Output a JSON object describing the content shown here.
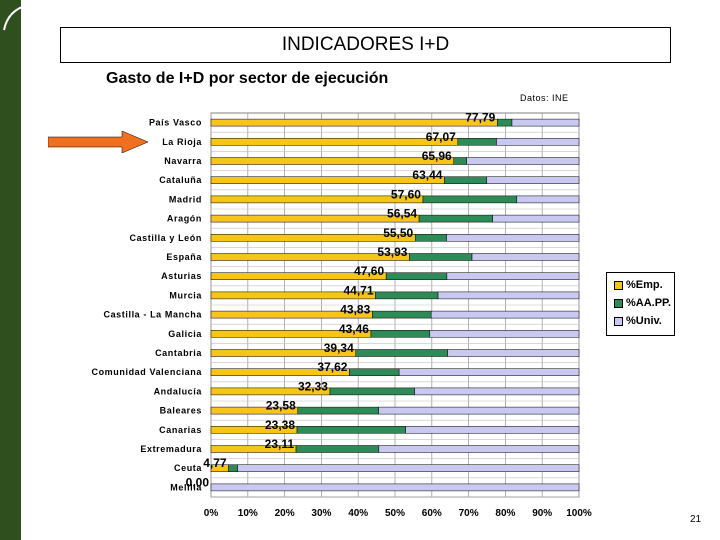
{
  "header": {
    "title": "INDICADORES I+D",
    "subtitle": "Gasto de I+D por sector de ejecución",
    "source": "Datos: INE",
    "page_number": "21"
  },
  "colors": {
    "emp": "#f5c518",
    "aapp": "#2e8b57",
    "univ": "#c8c8f0",
    "arrow": "#f07020",
    "left_bar": "#2f4f1f"
  },
  "legend": [
    {
      "label": "%Emp.",
      "color": "#f5c518"
    },
    {
      "label": "%AA.PP.",
      "color": "#2e8b57"
    },
    {
      "label": "%Univ.",
      "color": "#c8c8f0"
    }
  ],
  "chart_data": {
    "type": "bar",
    "orientation": "horizontal",
    "stacked": true,
    "title": "",
    "xlabel": "",
    "ylabel": "",
    "xlim": [
      0,
      100
    ],
    "x_ticks": [
      "0%",
      "10%",
      "20%",
      "30%",
      "40%",
      "50%",
      "60%",
      "70%",
      "80%",
      "90%",
      "100%"
    ],
    "grid": true,
    "legend_position": "right",
    "highlighted_category": "La Rioja",
    "categories": [
      "País Vasco",
      "La Rioja",
      "Navarra",
      "Cataluña",
      "Madrid",
      "Aragón",
      "Castilla y León",
      "España",
      "Asturias",
      "Murcia",
      "Castilla - La Mancha",
      "Galicia",
      "Cantabria",
      "Comunidad Valenciana",
      "Andalucía",
      "Baleares",
      "Canarias",
      "Extremadura",
      "Ceuta",
      "Melilla"
    ],
    "data_labels": [
      "77,79",
      "67,07",
      "65,96",
      "63,44",
      "57,60",
      "56,54",
      "55,50",
      "53,93",
      "47,60",
      "44,71",
      "43,83",
      "43,46",
      "39,34",
      "37,62",
      "32,33",
      "23,58",
      "23,38",
      "23,11",
      "4,77",
      "0,00"
    ],
    "series": [
      {
        "name": "%Emp.",
        "values": [
          77.79,
          67.07,
          65.96,
          63.44,
          57.6,
          56.54,
          55.5,
          53.93,
          47.6,
          44.71,
          43.83,
          43.46,
          39.34,
          37.62,
          32.33,
          23.58,
          23.38,
          23.11,
          4.77,
          0.0
        ]
      },
      {
        "name": "%AA.PP.",
        "values": [
          4,
          10.5,
          3.5,
          11.5,
          25.5,
          20,
          8.5,
          17,
          16.5,
          17,
          16,
          16,
          25,
          13.5,
          23,
          22,
          29.5,
          22.5,
          2.5,
          0
        ]
      },
      {
        "name": "%Univ.",
        "values": [
          18.21,
          22.43,
          30.54,
          25.06,
          16.9,
          23.46,
          36.0,
          29.07,
          35.9,
          38.29,
          40.17,
          40.54,
          35.66,
          48.88,
          44.67,
          54.42,
          47.12,
          54.39,
          92.73,
          100
        ]
      }
    ]
  }
}
